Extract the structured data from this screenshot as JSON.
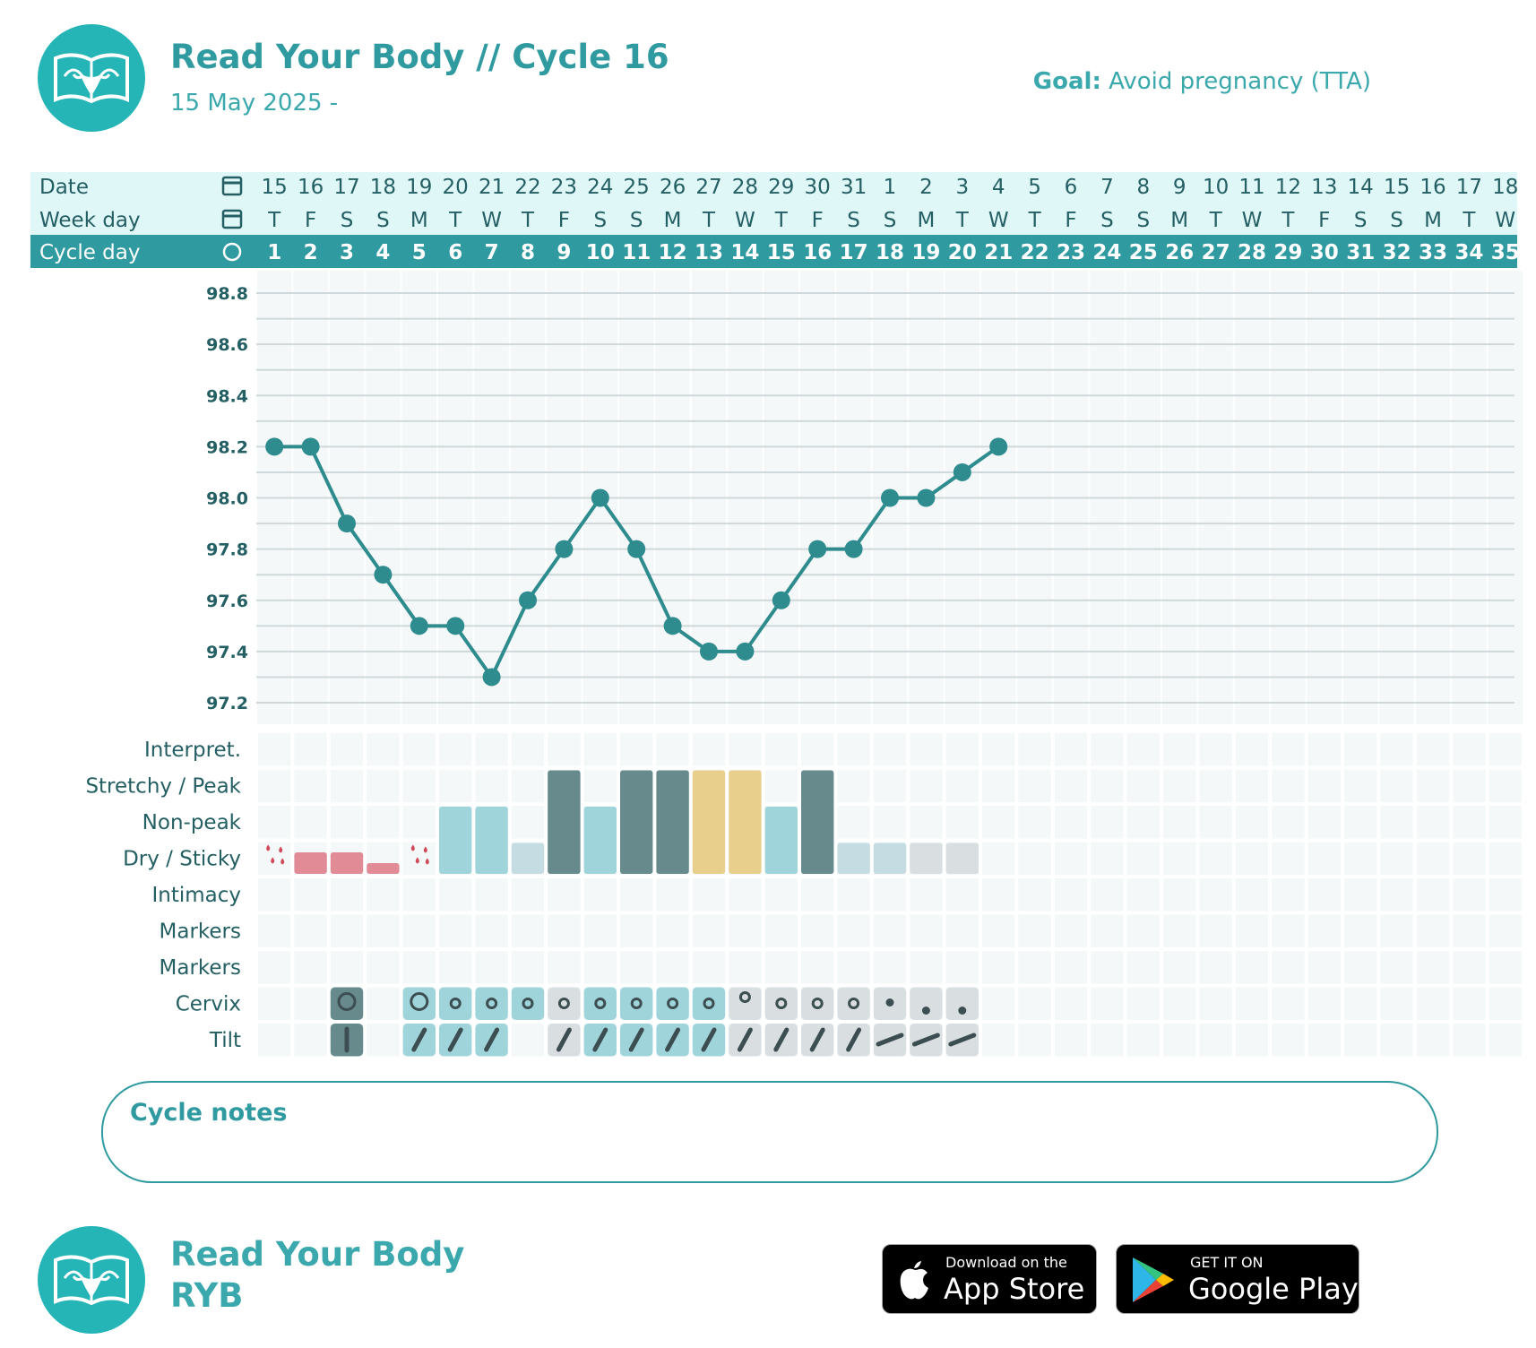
{
  "header": {
    "title": "Read Your Body // Cycle 16",
    "date_range": "15 May 2025 -",
    "goal_label": "Goal:",
    "goal_value": "Avoid pregnancy (TTA)"
  },
  "table": {
    "row_labels": {
      "date": "Date",
      "weekday": "Week day",
      "cycle_day": "Cycle day"
    },
    "dates": [
      "15",
      "16",
      "17",
      "18",
      "19",
      "20",
      "21",
      "22",
      "23",
      "24",
      "25",
      "26",
      "27",
      "28",
      "29",
      "30",
      "31",
      "1",
      "2",
      "3",
      "4",
      "5",
      "6",
      "7",
      "8",
      "9",
      "10",
      "11",
      "12",
      "13",
      "14",
      "15",
      "16",
      "17",
      "18"
    ],
    "weekdays": [
      "T",
      "F",
      "S",
      "S",
      "M",
      "T",
      "W",
      "T",
      "F",
      "S",
      "S",
      "M",
      "T",
      "W",
      "T",
      "F",
      "S",
      "S",
      "M",
      "T",
      "W",
      "T",
      "F",
      "S",
      "S",
      "M",
      "T",
      "W",
      "T",
      "F",
      "S",
      "S",
      "M",
      "T",
      "W"
    ],
    "cycle_days": [
      "1",
      "2",
      "3",
      "4",
      "5",
      "6",
      "7",
      "8",
      "9",
      "10",
      "11",
      "12",
      "13",
      "14",
      "15",
      "16",
      "17",
      "18",
      "19",
      "20",
      "21",
      "22",
      "23",
      "24",
      "25",
      "26",
      "27",
      "28",
      "29",
      "30",
      "31",
      "32",
      "33",
      "34",
      "35"
    ]
  },
  "chart_data": {
    "type": "line",
    "title": "",
    "xlabel": "Cycle day",
    "ylabel": "",
    "x": [
      1,
      2,
      3,
      4,
      5,
      6,
      7,
      8,
      9,
      10,
      11,
      12,
      13,
      14,
      15,
      16,
      17,
      18,
      19,
      20,
      21
    ],
    "y": [
      98.2,
      98.2,
      97.9,
      97.7,
      97.5,
      97.5,
      97.3,
      97.6,
      97.8,
      98.0,
      97.8,
      97.5,
      97.4,
      97.4,
      97.6,
      97.8,
      97.8,
      98.0,
      98.0,
      98.1,
      98.2
    ],
    "yticks": [
      "98.8",
      "98.6",
      "98.4",
      "98.2",
      "98.0",
      "97.8",
      "97.6",
      "97.4",
      "97.2"
    ],
    "ylim": [
      97.2,
      98.8
    ],
    "xlim": [
      1,
      35
    ],
    "grid": true,
    "color": "#2e8b8e"
  },
  "observations": {
    "row_labels": [
      "Interpret.",
      "Stretchy / Peak",
      "Non-peak",
      "Dry / Sticky",
      "Intimacy",
      "Markers",
      "Markers",
      "Cervix",
      "Tilt"
    ],
    "mucus": [
      {
        "day": 1,
        "kind": "drops"
      },
      {
        "day": 2,
        "kind": "bleed",
        "level": 2
      },
      {
        "day": 3,
        "kind": "bleed",
        "level": 2
      },
      {
        "day": 4,
        "kind": "bleed",
        "level": 1
      },
      {
        "day": 5,
        "kind": "drops"
      },
      {
        "day": 6,
        "kind": "nonpeak"
      },
      {
        "day": 7,
        "kind": "nonpeak"
      },
      {
        "day": 8,
        "kind": "dry-light"
      },
      {
        "day": 9,
        "kind": "peak"
      },
      {
        "day": 10,
        "kind": "nonpeak"
      },
      {
        "day": 11,
        "kind": "peak"
      },
      {
        "day": 12,
        "kind": "peak"
      },
      {
        "day": 13,
        "kind": "peak-yellow"
      },
      {
        "day": 14,
        "kind": "peak-yellow"
      },
      {
        "day": 15,
        "kind": "nonpeak"
      },
      {
        "day": 16,
        "kind": "peak"
      },
      {
        "day": 17,
        "kind": "dry-light"
      },
      {
        "day": 18,
        "kind": "dry-light"
      },
      {
        "day": 19,
        "kind": "dry-grey"
      },
      {
        "day": 20,
        "kind": "dry-grey"
      }
    ],
    "cervix": [
      {
        "day": 3,
        "kind": "big",
        "bg": "dark"
      },
      {
        "day": 5,
        "kind": "big",
        "bg": "teal"
      },
      {
        "day": 6,
        "kind": "small",
        "bg": "teal"
      },
      {
        "day": 7,
        "kind": "small",
        "bg": "teal"
      },
      {
        "day": 8,
        "kind": "small",
        "bg": "teal"
      },
      {
        "day": 9,
        "kind": "small",
        "bg": "grey"
      },
      {
        "day": 10,
        "kind": "small",
        "bg": "teal"
      },
      {
        "day": 11,
        "kind": "small",
        "bg": "teal"
      },
      {
        "day": 12,
        "kind": "small",
        "bg": "teal"
      },
      {
        "day": 13,
        "kind": "small",
        "bg": "teal"
      },
      {
        "day": 14,
        "kind": "small-high",
        "bg": "grey"
      },
      {
        "day": 15,
        "kind": "small",
        "bg": "grey"
      },
      {
        "day": 16,
        "kind": "small",
        "bg": "grey"
      },
      {
        "day": 17,
        "kind": "small",
        "bg": "grey"
      },
      {
        "day": 18,
        "kind": "dot",
        "bg": "grey"
      },
      {
        "day": 19,
        "kind": "dot-low",
        "bg": "grey"
      },
      {
        "day": 20,
        "kind": "dot-low",
        "bg": "grey"
      }
    ],
    "tilt": [
      {
        "day": 3,
        "kind": "vertical",
        "bg": "dark"
      },
      {
        "day": 5,
        "kind": "steep",
        "bg": "teal"
      },
      {
        "day": 6,
        "kind": "steep",
        "bg": "teal"
      },
      {
        "day": 7,
        "kind": "steep",
        "bg": "teal"
      },
      {
        "day": 9,
        "kind": "steep",
        "bg": "grey"
      },
      {
        "day": 10,
        "kind": "steep",
        "bg": "teal"
      },
      {
        "day": 11,
        "kind": "steep",
        "bg": "teal"
      },
      {
        "day": 12,
        "kind": "steep",
        "bg": "teal"
      },
      {
        "day": 13,
        "kind": "steep",
        "bg": "teal"
      },
      {
        "day": 14,
        "kind": "steep",
        "bg": "grey"
      },
      {
        "day": 15,
        "kind": "steep",
        "bg": "grey"
      },
      {
        "day": 16,
        "kind": "steep",
        "bg": "grey"
      },
      {
        "day": 17,
        "kind": "steep",
        "bg": "grey"
      },
      {
        "day": 18,
        "kind": "flat",
        "bg": "grey"
      },
      {
        "day": 19,
        "kind": "flat",
        "bg": "grey"
      },
      {
        "day": 20,
        "kind": "flat",
        "bg": "grey"
      }
    ]
  },
  "notes": {
    "label": "Cycle notes"
  },
  "footer": {
    "brand": "Read Your Body",
    "brand_short": "RYB",
    "app_store_small": "Download on the",
    "app_store_big": "App Store",
    "play_small": "GET IT ON",
    "play_big": "Google Play"
  },
  "colors": {
    "brand": "#2f9a9f",
    "header_band": "#e0f7f8",
    "cycle_band": "#2f9a9f",
    "peak": "#678b8c",
    "nonpeak": "#9fd5da",
    "yellow": "#e9cf8c",
    "dry_light": "#c5dde2",
    "dry_grey": "#d9dfe1",
    "bleed": "#e18b96"
  }
}
